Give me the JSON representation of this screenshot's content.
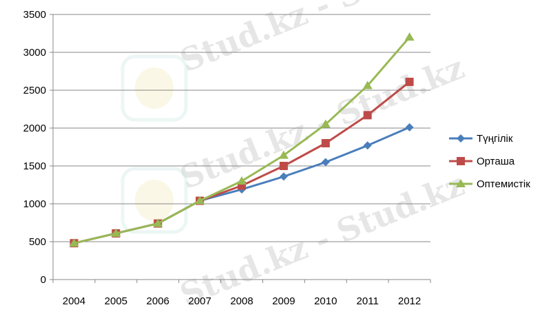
{
  "chart_data": {
    "type": "line",
    "categories": [
      "2004",
      "2005",
      "2006",
      "2007",
      "2008",
      "2009",
      "2010",
      "2011",
      "2012"
    ],
    "ylim": [
      0,
      3500
    ],
    "yticks": [
      0,
      500,
      1000,
      1500,
      2000,
      2500,
      3000,
      3500
    ],
    "grid": true,
    "legend_position": "right",
    "series": [
      {
        "name": "Түңгілік",
        "color": "#4a7ebb",
        "marker": "diamond",
        "values": [
          480,
          610,
          740,
          1040,
          1190,
          1360,
          1550,
          1770,
          2010
        ]
      },
      {
        "name": "Орташа",
        "color": "#be4b48",
        "marker": "square",
        "values": [
          480,
          610,
          740,
          1040,
          1240,
          1500,
          1800,
          2170,
          2610
        ]
      },
      {
        "name": "Оптемистік",
        "color": "#98b954",
        "marker": "triangle",
        "values": [
          480,
          610,
          740,
          1040,
          1300,
          1640,
          2050,
          2560,
          3200
        ]
      }
    ]
  },
  "watermark": {
    "text": "Stud.kz - Stud.kz"
  }
}
